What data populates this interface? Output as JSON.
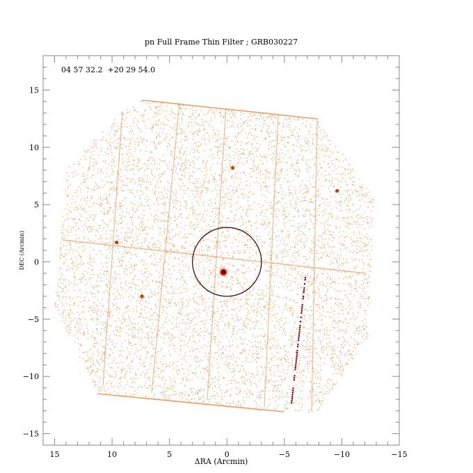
{
  "title": "pn Full Frame Thin Filter ; GRB030227",
  "coord_label": "04 57 32.2  +20 29 54.0",
  "x_axis": {
    "label": "ΔRA (Arcmin)",
    "range": [
      16,
      -15
    ],
    "ticks": [
      15,
      10,
      5,
      0,
      -5,
      -10,
      -15
    ],
    "tick_labels": [
      "15",
      "10",
      "5",
      "0",
      "−5",
      "−10",
      "−15"
    ]
  },
  "y_axis": {
    "label": "DEC (Arcmin)",
    "range": [
      -16,
      18
    ],
    "ticks": [
      -15,
      -10,
      -5,
      0,
      5,
      10,
      15
    ],
    "tick_labels": [
      "−15",
      "−10",
      "−5",
      "0",
      "5",
      "10",
      "15"
    ]
  },
  "colors": {
    "photon": "#e8863a",
    "source": "#8b0000",
    "circle": "#3a1010",
    "axes": "#888888"
  },
  "extraction_circle": {
    "center_ra": 0,
    "center_dec": 0,
    "radius_arcmin": 3
  },
  "main_source": {
    "ra": 0.3,
    "dec": -0.9
  },
  "sources": [
    {
      "ra": 9.6,
      "dec": 1.7
    },
    {
      "ra": 7.4,
      "dec": -3.0
    },
    {
      "ra": -9.6,
      "dec": 6.2
    },
    {
      "ra": -0.5,
      "dec": 8.2
    }
  ]
}
